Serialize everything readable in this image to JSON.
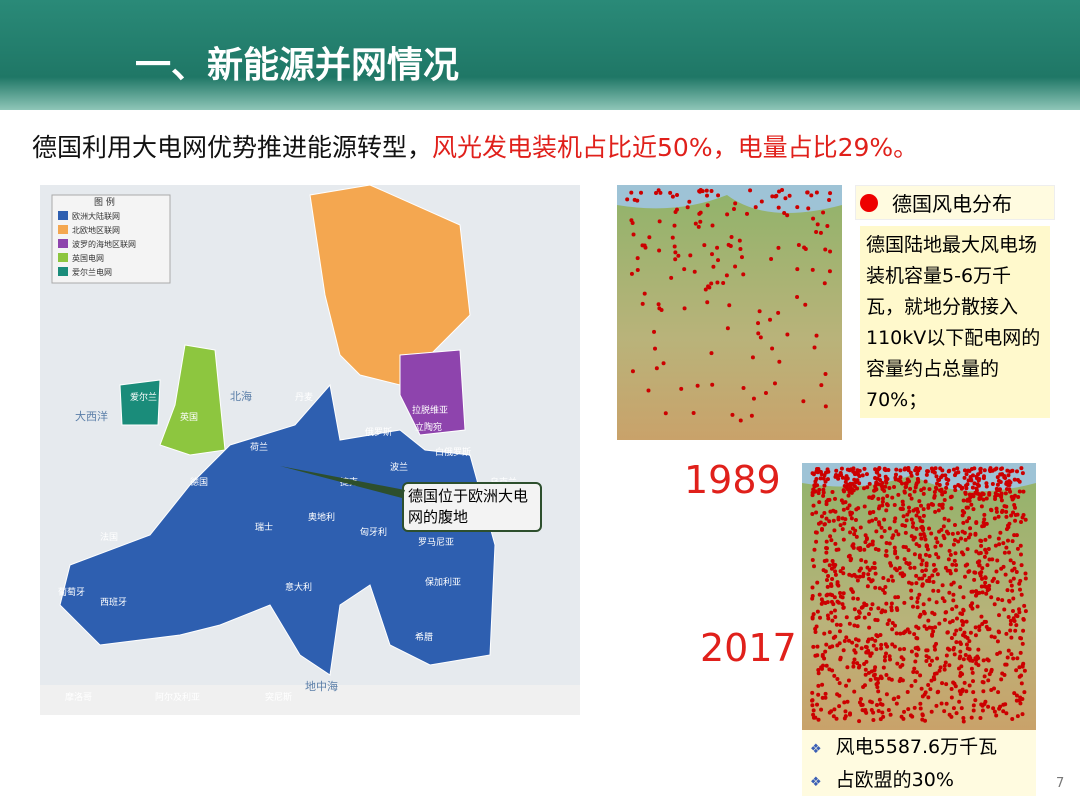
{
  "header": {
    "title": "一、新能源并网情况"
  },
  "subtitle": {
    "lead": "德国利用大电网优势推进能源转型，",
    "highlight": "风光发电装机占比近50%，电量占比29%。"
  },
  "europe_map": {
    "legend": {
      "title": "图 例",
      "items": [
        "欧洲大陆联网",
        "北欧地区联网",
        "波罗的海地区联网",
        "英国电网",
        "爱尔兰电网"
      ]
    },
    "labels": [
      "法国",
      "德国",
      "西班牙",
      "意大利",
      "波兰",
      "荷兰",
      "丹麦",
      "瑞士",
      "奥地利",
      "捷克",
      "匈牙利",
      "罗马尼亚",
      "保加利亚",
      "希腊",
      "英国",
      "爱尔兰",
      "大西洋",
      "北海",
      "地中海",
      "拉脱维亚",
      "立陶宛",
      "俄罗斯",
      "白俄罗斯",
      "乌克兰",
      "葡萄牙",
      "摩洛哥",
      "阿尔及利亚",
      "突尼斯"
    ],
    "callout": "德国位于欧洲大电网的腹地"
  },
  "wind_maps": {
    "legend": "德国风电分布",
    "note": "德国陆地最大风电场装机容量5-6万千瓦，就地分散接入110kV以下配电网的容量约占总量的70%；",
    "years": [
      "1989",
      "2017"
    ],
    "bullets": [
      "风电5587.6万千瓦",
      "占欧盟的30%"
    ]
  },
  "page_number": "7"
}
